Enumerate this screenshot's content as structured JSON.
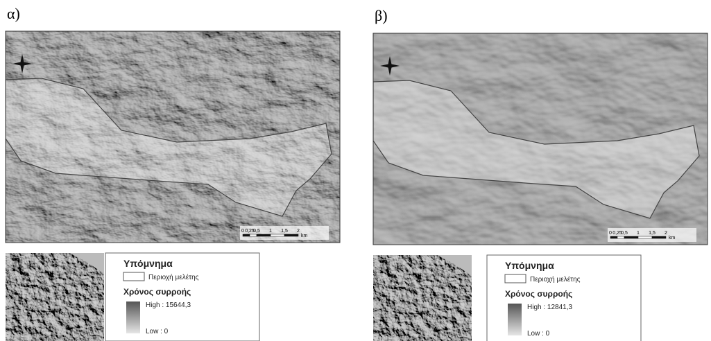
{
  "panels": [
    {
      "label": "α)",
      "legend": {
        "title": "Υπόμνημα",
        "boundary": "Περιοχή μελέτης",
        "ramp_title": "Χρόνος συρροής",
        "high": "High : 15644,3",
        "low": "Low : 0"
      },
      "scale": {
        "ticks": [
          "0",
          "0,25",
          "0,5",
          "1",
          "1,5",
          "2"
        ],
        "unit": "km"
      }
    },
    {
      "label": "β)",
      "legend": {
        "title": "Υπόμνημα",
        "boundary": "Περιοχή μελέτης",
        "ramp_title": "Χρόνος συρροής",
        "high": "High : 12841,3",
        "low": "Low : 0"
      },
      "scale": {
        "ticks": [
          "0",
          "0,25",
          "0,5",
          "1",
          "1,5",
          "2"
        ],
        "unit": "km"
      }
    }
  ]
}
